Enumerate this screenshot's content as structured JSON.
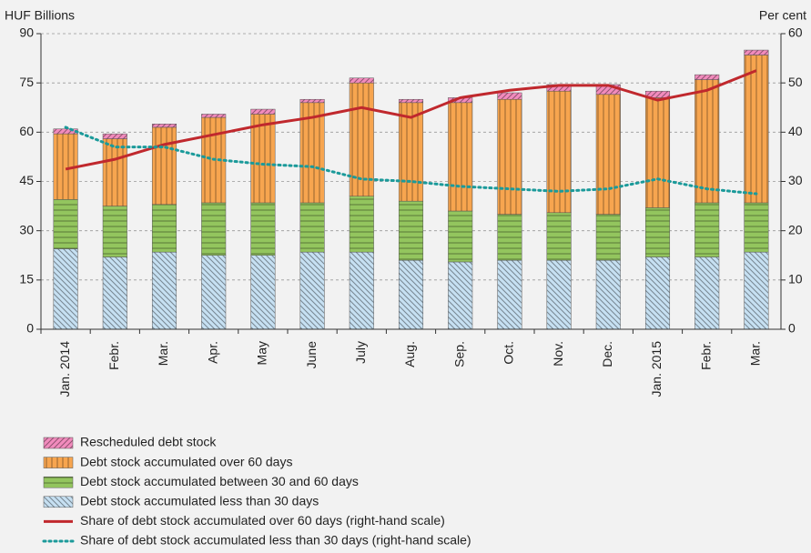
{
  "chart_data": {
    "type": "bar",
    "y_label": "HUF Billions",
    "y2_label": "Per cent",
    "categories": [
      "Jan. 2014",
      "Febr.",
      "Mar.",
      "Apr.",
      "May",
      "June",
      "July",
      "Aug.",
      "Sep.",
      "Oct.",
      "Nov.",
      "Dec.",
      "Jan. 2015",
      "Febr.",
      "Mar."
    ],
    "ylim": [
      0,
      90
    ],
    "yticks": [
      0,
      15,
      30,
      45,
      60,
      75,
      90
    ],
    "y2lim": [
      0,
      60
    ],
    "y2ticks": [
      0,
      10,
      20,
      30,
      40,
      50,
      60
    ],
    "grid": true,
    "series": [
      {
        "name": "Rescheduled debt stock",
        "type": "bar",
        "color": "#f28bbd",
        "pattern": "forward-diagonal",
        "values": [
          1.5,
          1.5,
          1,
          1,
          1.5,
          1,
          1.5,
          1,
          1.5,
          2,
          2,
          3,
          2,
          1.5,
          1.5
        ]
      },
      {
        "name": "Debt stock accumulated over 60 days",
        "type": "bar",
        "color": "#f7a54f",
        "pattern": "vertical",
        "values": [
          20,
          20.5,
          23.5,
          26,
          27,
          30.5,
          34.5,
          30,
          33,
          35,
          37,
          36.5,
          33.5,
          37.5,
          45
        ]
      },
      {
        "name": "Debt stock accumulated between 30 and 60 days",
        "type": "bar",
        "color": "#93c55e",
        "pattern": "horizontal",
        "values": [
          15,
          15.5,
          14.5,
          16,
          16,
          15,
          17,
          18,
          15.5,
          14,
          14.5,
          14,
          15,
          16.5,
          15
        ]
      },
      {
        "name": "Debt stock accumulated less than 30 days",
        "type": "bar",
        "color": "#c6e0f2",
        "pattern": "back-diagonal",
        "values": [
          24.5,
          22,
          23.5,
          22.5,
          22.5,
          23.5,
          23.5,
          21,
          20.5,
          21,
          21,
          21,
          22,
          22,
          23.5
        ]
      },
      {
        "name": "Share of debt stock accumulated over 60 days (right-hand scale)",
        "type": "line",
        "axis": "y2",
        "color": "#c0282d",
        "style": "solid",
        "values": [
          32.5,
          34.5,
          37.5,
          39.5,
          41.5,
          43,
          45,
          43,
          47,
          48.5,
          49.5,
          49.5,
          46.5,
          48.5,
          52.5
        ]
      },
      {
        "name": "Share of debt stock accumulated less than 30 days (right-hand scale)",
        "type": "line",
        "axis": "y2",
        "color": "#1b9a9a",
        "style": "dotted",
        "values": [
          41,
          37,
          37,
          34.5,
          33.5,
          33,
          30.5,
          30,
          29,
          28.5,
          28,
          28.5,
          30.5,
          28.5,
          27.5
        ]
      }
    ]
  }
}
